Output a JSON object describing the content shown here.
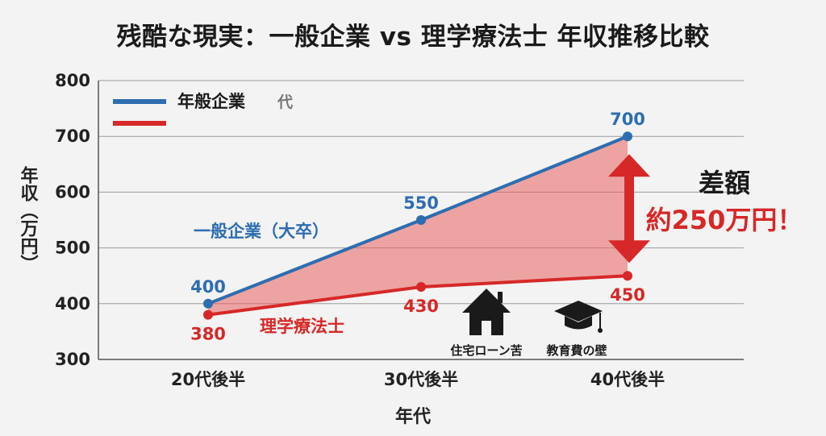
{
  "title": "残酷な現実：一般企業 vs 理学療法士 年収推移比較",
  "colors": {
    "series_general": "#2e6db0",
    "series_pt": "#d62828",
    "fill_gap": "#e86060",
    "arrow": "#d62828",
    "grid": "#9a9a9a"
  },
  "legend": {
    "general_label": "年般企業",
    "general_sub": "代"
  },
  "chart_data": {
    "type": "line",
    "title": "残酷な現実：一般企業 vs 理学療法士 年収推移比較",
    "xlabel": "年代",
    "ylabel": "年収（万円）",
    "categories": [
      "20代後半",
      "30代後半",
      "40代後半"
    ],
    "ylim": [
      300,
      800
    ],
    "yticks": [
      300,
      400,
      500,
      600,
      700,
      800
    ],
    "grid": true,
    "legend_position": "top-left",
    "series": [
      {
        "key": "general",
        "name": "一般企業（大卒）",
        "values": [
          400,
          550,
          700
        ]
      },
      {
        "key": "pt",
        "name": "理学療法士",
        "values": [
          380,
          430,
          450
        ]
      }
    ],
    "annotation": {
      "line1": "差額",
      "line2": "約250万円！"
    }
  },
  "icons": [
    {
      "icon": "house-icon",
      "label": "住宅ローン苦"
    },
    {
      "icon": "graduation-cap-icon",
      "label": "教育費の壁"
    }
  ]
}
